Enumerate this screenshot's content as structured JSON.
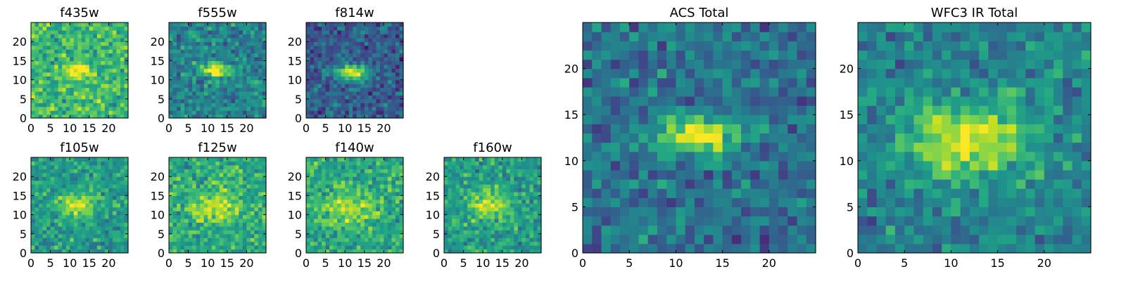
{
  "chart_data": [
    {
      "type": "heatmap",
      "title": "f435w",
      "xlim": [
        0,
        25
      ],
      "ylim": [
        0,
        25
      ],
      "xticks": [
        "0",
        "5",
        "10",
        "15",
        "20"
      ],
      "yticks": [
        "0",
        "5",
        "10",
        "15",
        "20"
      ],
      "grid": false,
      "colormap": "viridis",
      "source_center": [
        12,
        12.5
      ],
      "source_size": [
        2.8,
        1.3
      ],
      "source_peak": 0.38,
      "background_level": 0.68,
      "noise": 0.14
    },
    {
      "type": "heatmap",
      "title": "f555w",
      "xlim": [
        0,
        25
      ],
      "ylim": [
        0,
        25
      ],
      "xticks": [
        "0",
        "5",
        "10",
        "15",
        "20"
      ],
      "yticks": [
        "0",
        "5",
        "10",
        "15",
        "20"
      ],
      "grid": false,
      "colormap": "viridis",
      "source_center": [
        12,
        12.5
      ],
      "source_size": [
        2.7,
        1.3
      ],
      "source_peak": 0.55,
      "background_level": 0.45,
      "noise": 0.13
    },
    {
      "type": "heatmap",
      "title": "f814w",
      "xlim": [
        0,
        25
      ],
      "ylim": [
        0,
        25
      ],
      "xticks": [
        "0",
        "5",
        "10",
        "15",
        "20"
      ],
      "yticks": [
        "0",
        "5",
        "10",
        "15",
        "20"
      ],
      "grid": false,
      "colormap": "viridis",
      "source_center": [
        12,
        12
      ],
      "source_size": [
        3.0,
        1.5
      ],
      "source_peak": 0.7,
      "background_level": 0.3,
      "noise": 0.12
    },
    {
      "type": "heatmap",
      "title": "f105w",
      "xlim": [
        0,
        25
      ],
      "ylim": [
        0,
        25
      ],
      "xticks": [
        "0",
        "5",
        "10",
        "15",
        "20"
      ],
      "yticks": [
        "0",
        "5",
        "10",
        "15",
        "20"
      ],
      "grid": false,
      "colormap": "viridis",
      "source_center": [
        12,
        12.5
      ],
      "source_size": [
        3.5,
        2.2
      ],
      "source_peak": 0.38,
      "background_level": 0.55,
      "noise": 0.12
    },
    {
      "type": "heatmap",
      "title": "f125w",
      "xlim": [
        0,
        25
      ],
      "ylim": [
        0,
        25
      ],
      "xticks": [
        "0",
        "5",
        "10",
        "15",
        "20"
      ],
      "yticks": [
        "0",
        "5",
        "10",
        "15",
        "20"
      ],
      "grid": false,
      "colormap": "viridis",
      "source_center": [
        11.5,
        12
      ],
      "source_size": [
        4.5,
        3.0
      ],
      "source_peak": 0.3,
      "background_level": 0.6,
      "noise": 0.13
    },
    {
      "type": "heatmap",
      "title": "f140w",
      "xlim": [
        0,
        25
      ],
      "ylim": [
        0,
        25
      ],
      "xticks": [
        "0",
        "5",
        "10",
        "15",
        "20"
      ],
      "yticks": [
        "0",
        "5",
        "10",
        "15",
        "20"
      ],
      "grid": false,
      "colormap": "viridis",
      "source_center": [
        11,
        11.5
      ],
      "source_size": [
        4.5,
        3.0
      ],
      "source_peak": 0.3,
      "background_level": 0.6,
      "noise": 0.13
    },
    {
      "type": "heatmap",
      "title": "f160w",
      "xlim": [
        0,
        25
      ],
      "ylim": [
        0,
        25
      ],
      "xticks": [
        "0",
        "5",
        "10",
        "15",
        "20"
      ],
      "yticks": [
        "0",
        "5",
        "10",
        "15",
        "20"
      ],
      "grid": false,
      "colormap": "viridis",
      "source_center": [
        12,
        12.5
      ],
      "source_size": [
        4.0,
        2.6
      ],
      "source_peak": 0.35,
      "background_level": 0.55,
      "noise": 0.12
    },
    {
      "type": "heatmap",
      "title": "ACS Total",
      "xlim": [
        0,
        25
      ],
      "ylim": [
        0,
        25
      ],
      "xticks": [
        "0",
        "5",
        "10",
        "15",
        "20"
      ],
      "yticks": [
        "0",
        "5",
        "10",
        "15",
        "20"
      ],
      "grid": false,
      "colormap": "viridis",
      "source_center": [
        12,
        12.8
      ],
      "source_size": [
        3.2,
        1.4
      ],
      "source_peak": 0.62,
      "background_level": 0.38,
      "noise": 0.12
    },
    {
      "type": "heatmap",
      "title": "WFC3 IR Total",
      "xlim": [
        0,
        25
      ],
      "ylim": [
        0,
        25
      ],
      "xticks": [
        "0",
        "5",
        "10",
        "15",
        "20"
      ],
      "yticks": [
        "0",
        "5",
        "10",
        "15",
        "20"
      ],
      "grid": false,
      "colormap": "viridis",
      "source_center": [
        11.8,
        12.3
      ],
      "source_size": [
        4.5,
        2.8
      ],
      "source_peak": 0.5,
      "background_level": 0.45,
      "noise": 0.12
    }
  ]
}
